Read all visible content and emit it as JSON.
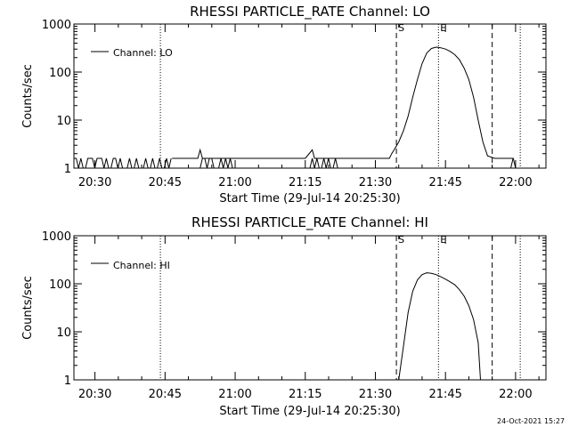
{
  "footer": {
    "timestamp": "24-Oct-2021 15:27"
  },
  "chart_data": [
    {
      "type": "line",
      "title": "RHESSI PARTICLE_RATE Channel: LO",
      "xlabel": "Start Time (29-Jul-14 20:25:30)",
      "ylabel": "Counts/sec",
      "yscale": "log",
      "ylim": [
        1,
        1000
      ],
      "xlim": [
        "20:25:30",
        "22:06:30"
      ],
      "x_ticks": [
        "20:30",
        "20:45",
        "21:00",
        "21:15",
        "21:30",
        "21:45",
        "22:00"
      ],
      "y_ticks": [
        "1",
        "10",
        "100",
        "1000"
      ],
      "legend": {
        "position": "top-left",
        "entries": [
          "Channel: LO"
        ]
      },
      "markers": [
        {
          "label": "S",
          "time": "21:34:30",
          "style": "dashed"
        },
        {
          "label": "E",
          "time": "21:43:30",
          "style": "dotted"
        }
      ],
      "vertical_lines": [
        {
          "time": "20:44:00",
          "style": "dotted"
        },
        {
          "time": "21:55:00",
          "style": "dashed"
        },
        {
          "time": "22:01:00",
          "style": "dotted"
        }
      ],
      "series": [
        {
          "name": "Channel: LO",
          "noise_windows": [
            {
              "from": "20:25:30",
              "to": "20:46:30",
              "low": 1,
              "high": 1.6
            },
            {
              "from": "20:52:30",
              "to": "21:00:00",
              "low": 1,
              "high": 1.6
            },
            {
              "from": "21:15:30",
              "to": "21:22:00",
              "low": 1,
              "high": 1.6
            },
            {
              "from": "21:55:30",
              "to": "21:59:30",
              "low": 1,
              "high": 1.6
            }
          ],
          "points": [
            [
              "20:46:30",
              1.6
            ],
            [
              "20:52:00",
              1.6
            ],
            [
              "20:52:30",
              2.4
            ],
            [
              "20:53:00",
              1.6
            ],
            [
              "21:00:00",
              1.6
            ],
            [
              "21:15:00",
              1.6
            ],
            [
              "21:16:30",
              2.4
            ],
            [
              "21:17:00",
              1.6
            ],
            [
              "21:22:00",
              1.6
            ],
            [
              "21:33:00",
              1.6
            ],
            [
              "21:33:30",
              2.0
            ],
            [
              "21:34:00",
              2.4
            ],
            [
              "21:35:00",
              3.5
            ],
            [
              "21:36:00",
              6
            ],
            [
              "21:37:00",
              12
            ],
            [
              "21:38:00",
              30
            ],
            [
              "21:39:00",
              70
            ],
            [
              "21:40:00",
              150
            ],
            [
              "21:41:00",
              250
            ],
            [
              "21:42:00",
              310
            ],
            [
              "21:43:00",
              330
            ],
            [
              "21:44:00",
              320
            ],
            [
              "21:45:00",
              300
            ],
            [
              "21:46:00",
              270
            ],
            [
              "21:47:00",
              230
            ],
            [
              "21:48:00",
              180
            ],
            [
              "21:49:00",
              120
            ],
            [
              "21:50:00",
              70
            ],
            [
              "21:51:00",
              30
            ],
            [
              "21:52:00",
              10
            ],
            [
              "21:53:00",
              3.5
            ],
            [
              "21:54:00",
              1.8
            ],
            [
              "21:55:30",
              1.6
            ],
            [
              "21:59:30",
              1.6
            ],
            [
              "22:00:00",
              1.0
            ]
          ]
        }
      ]
    },
    {
      "type": "line",
      "title": "RHESSI PARTICLE_RATE Channel: HI",
      "xlabel": "Start Time (29-Jul-14 20:25:30)",
      "ylabel": "Counts/sec",
      "yscale": "log",
      "ylim": [
        1,
        1000
      ],
      "xlim": [
        "20:25:30",
        "22:06:30"
      ],
      "x_ticks": [
        "20:30",
        "20:45",
        "21:00",
        "21:15",
        "21:30",
        "21:45",
        "22:00"
      ],
      "y_ticks": [
        "1",
        "10",
        "100",
        "1000"
      ],
      "legend": {
        "position": "top-left",
        "entries": [
          "Channel: HI"
        ]
      },
      "markers": [
        {
          "label": "S",
          "time": "21:34:30",
          "style": "dashed"
        },
        {
          "label": "E",
          "time": "21:43:30",
          "style": "dotted"
        }
      ],
      "vertical_lines": [
        {
          "time": "20:44:00",
          "style": "dotted"
        },
        {
          "time": "21:55:00",
          "style": "dashed"
        },
        {
          "time": "22:01:00",
          "style": "dotted"
        }
      ],
      "series": [
        {
          "name": "Channel: HI",
          "noise_windows": [],
          "points": [
            [
              "21:35:00",
              1.0
            ],
            [
              "21:36:00",
              5
            ],
            [
              "21:37:00",
              25
            ],
            [
              "21:38:00",
              70
            ],
            [
              "21:39:00",
              120
            ],
            [
              "21:40:00",
              155
            ],
            [
              "21:41:00",
              170
            ],
            [
              "21:42:00",
              165
            ],
            [
              "21:43:00",
              155
            ],
            [
              "21:44:00",
              140
            ],
            [
              "21:45:00",
              125
            ],
            [
              "21:46:00",
              110
            ],
            [
              "21:47:00",
              95
            ],
            [
              "21:48:00",
              75
            ],
            [
              "21:49:00",
              55
            ],
            [
              "21:50:00",
              35
            ],
            [
              "21:51:00",
              18
            ],
            [
              "21:52:00",
              6
            ],
            [
              "21:52:30",
              1.0
            ]
          ]
        }
      ]
    }
  ]
}
